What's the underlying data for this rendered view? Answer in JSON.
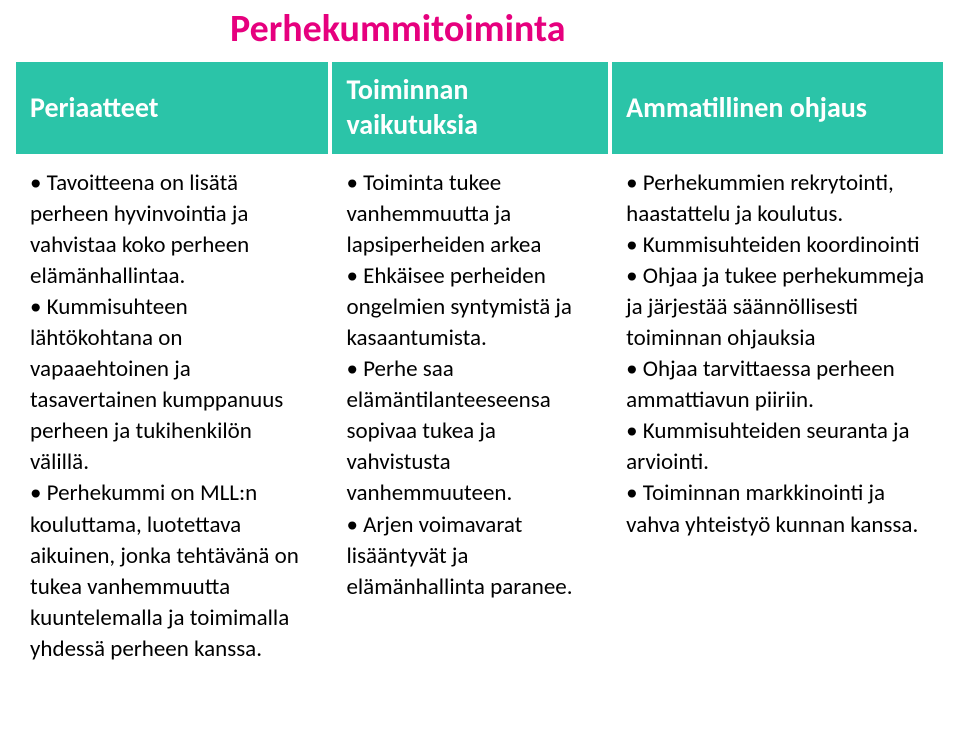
{
  "title": {
    "text": "Perhekummitoiminta",
    "color": "#e6007e"
  },
  "header": {
    "background": "#2bc4a8",
    "text_color": "#ffffff",
    "cols": [
      "Periaatteet",
      "Toiminnan vaikutuksia",
      "Ammatillinen ohjaus"
    ]
  },
  "col_widths_pct": [
    34,
    30,
    36
  ],
  "body": {
    "cells": [
      "• Tavoitteena on lisätä perheen hyvinvointia ja vahvistaa koko perheen elämänhallintaa.\n• Kummisuhteen lähtökohtana on vapaaehtoinen ja tasavertainen kumppanuus perheen ja tukihenkilön välillä.\n• Perhekummi on MLL:n kouluttama, luotettava aikuinen, jonka tehtävänä on tukea vanhemmuutta kuuntelemalla ja toimimalla yhdessä perheen kanssa.",
      "• Toiminta tukee vanhemmuutta ja lapsiperheiden arkea\n• Ehkäisee perheiden ongelmien syntymistä ja kasaantumista.\n• Perhe saa elämäntilanteeseensa sopivaa tukea ja vahvistusta vanhemmuuteen.\n• Arjen voimavarat lisääntyvät ja elämänhallinta paranee.",
      "• Perhekummien rekrytointi, haastattelu ja koulutus.\n• Kummisuhteiden koordinointi\n• Ohjaa ja tukee perhekummeja ja järjestää säännöllisesti toiminnan ohjauksia\n• Ohjaa tarvittaessa perheen ammattiavun piiriin.\n• Kummisuhteiden seuranta ja arviointi.\n• Toiminnan markkinointi ja vahva yhteistyö kunnan kanssa."
    ]
  }
}
